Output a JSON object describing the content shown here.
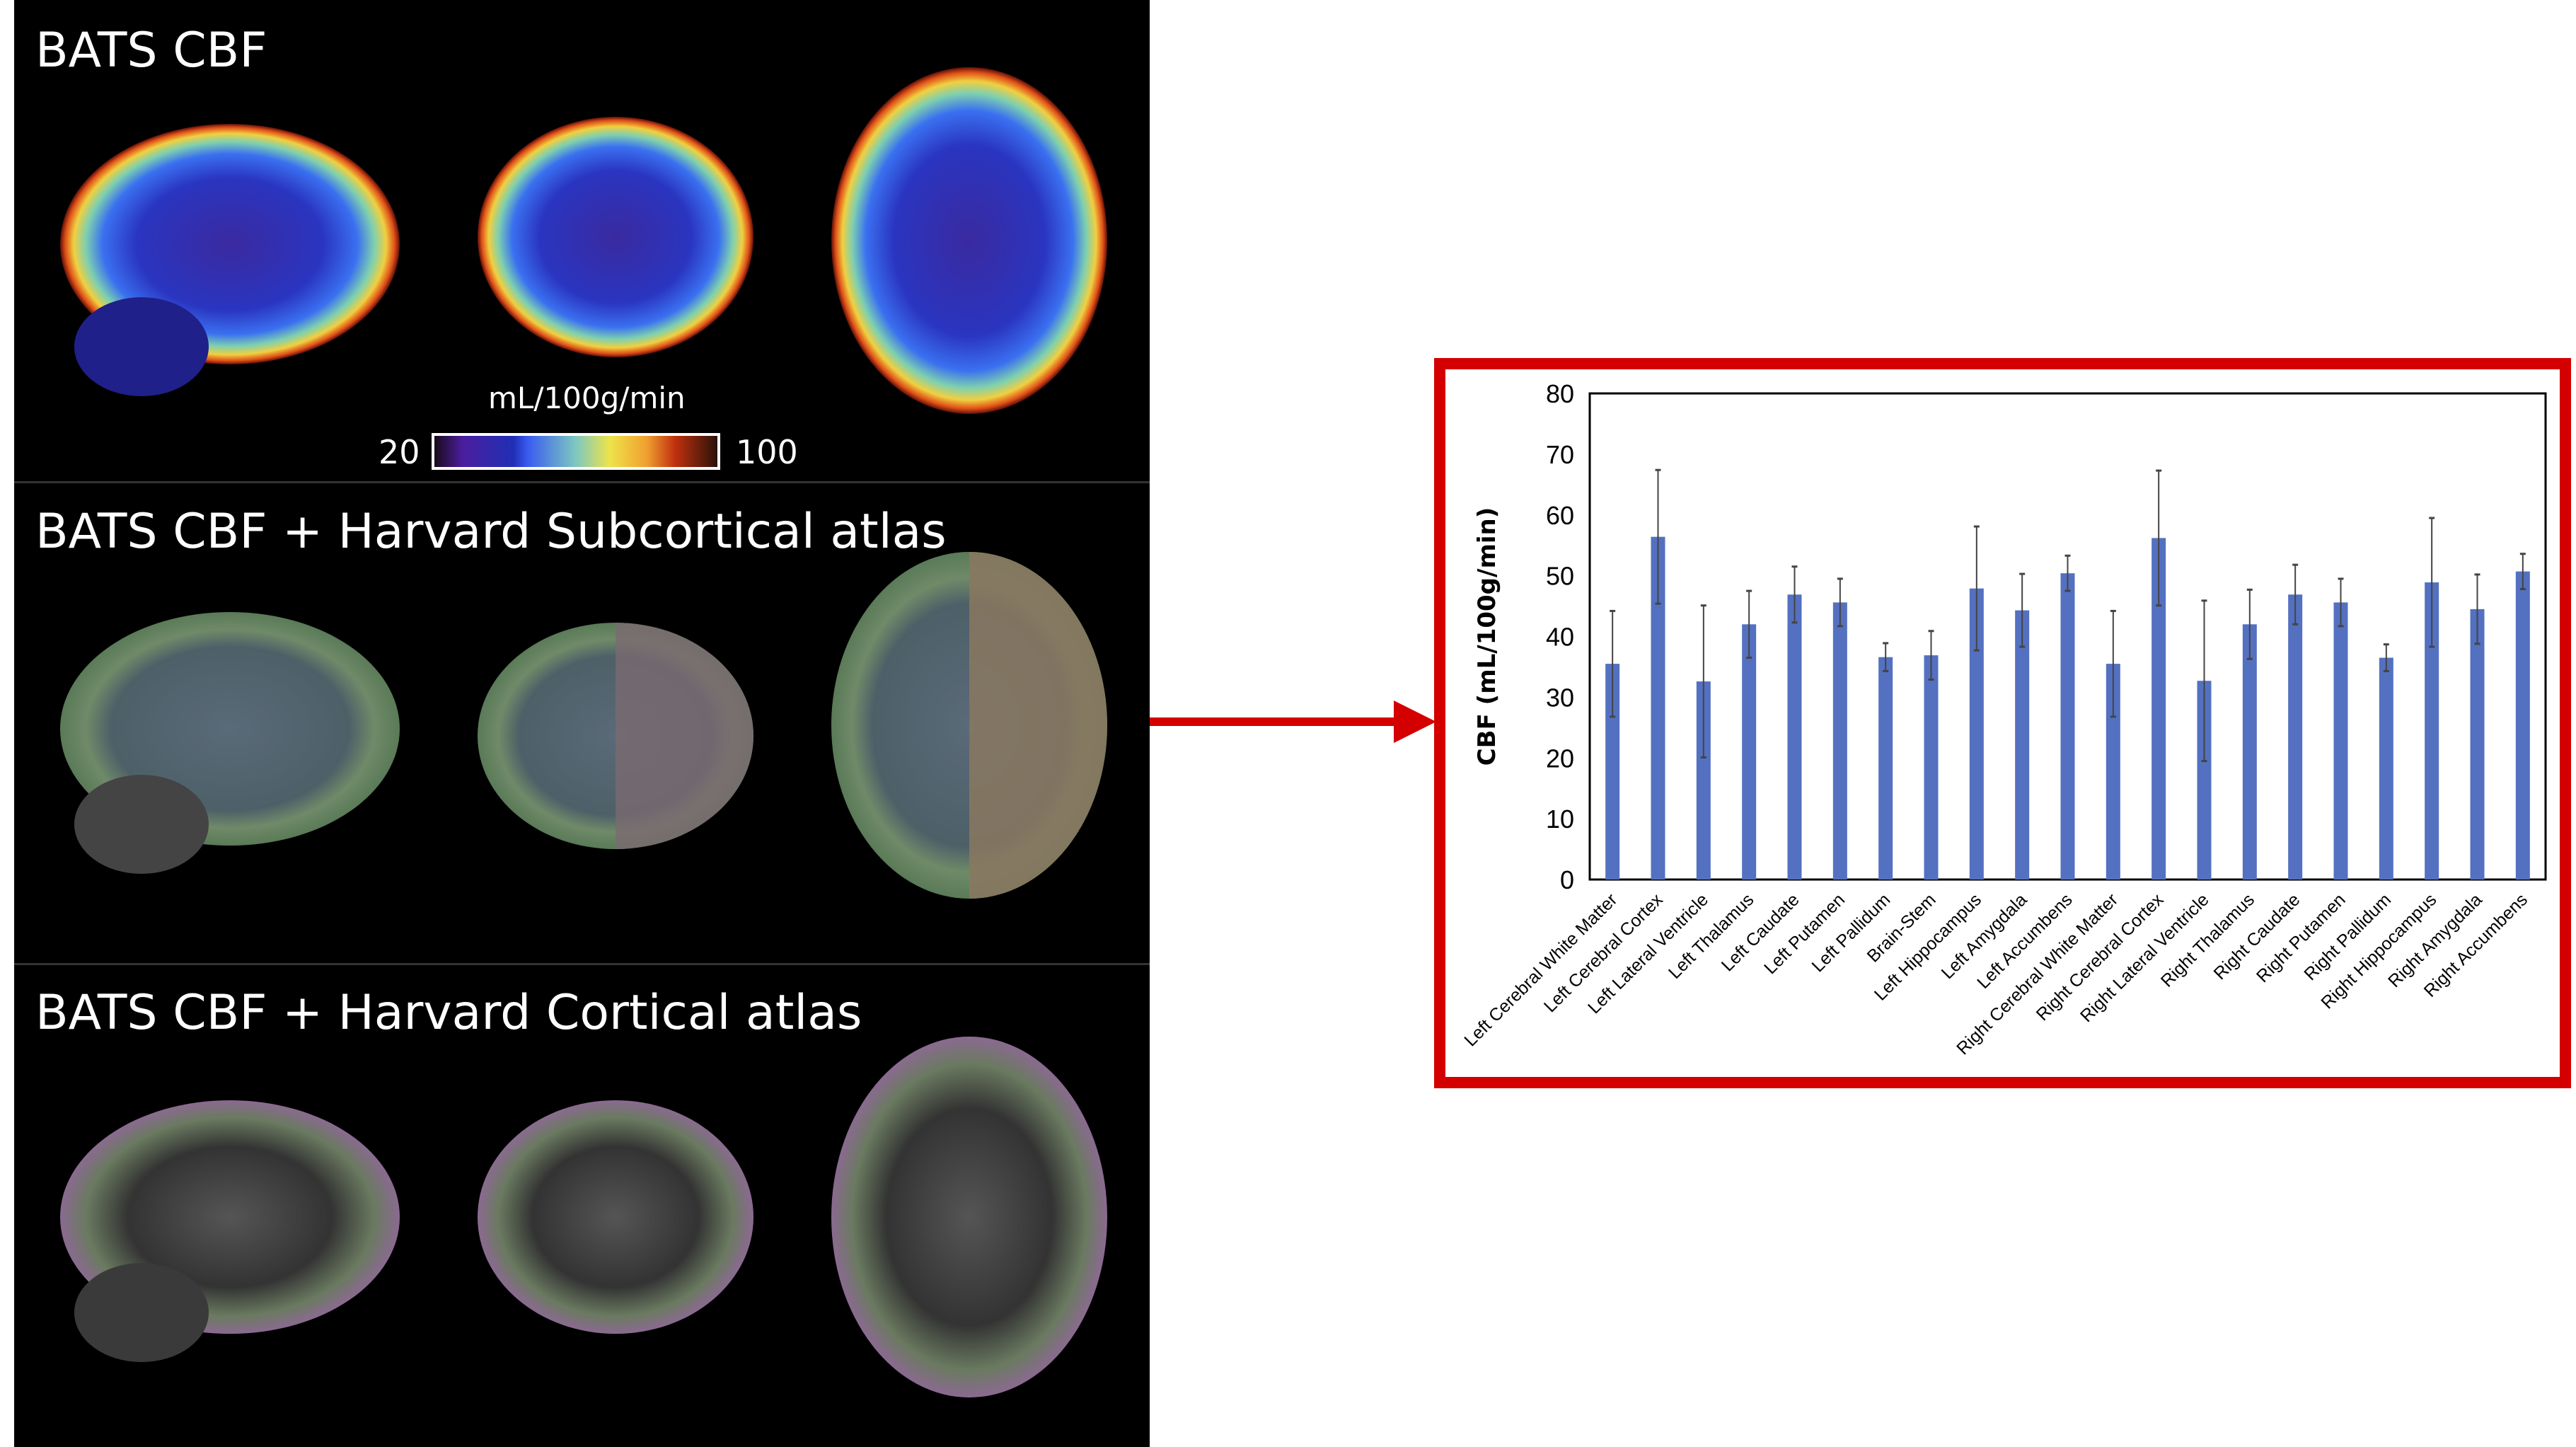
{
  "panels": [
    {
      "title": "BATS CBF"
    },
    {
      "title": "BATS CBF + Harvard Subcortical atlas"
    },
    {
      "title": "BATS CBF + Harvard Cortical atlas"
    }
  ],
  "colorbar": {
    "unit": "mL/100g/min",
    "min": "20",
    "max": "100"
  },
  "colors": {
    "bar": "#5470c0",
    "highlight_box": "#d40000",
    "arrow": "#d40000"
  },
  "chart_data": {
    "type": "bar",
    "ylabel": "CBF (mL/100g/min)",
    "ylim": [
      0,
      80
    ],
    "yticks": [
      "0",
      "10",
      "20",
      "30",
      "40",
      "50",
      "60",
      "70",
      "80"
    ],
    "categories": [
      "Left Cerebral White Matter",
      "Left Cerebral Cortex",
      "Left Lateral Ventricle",
      "Left Thalamus",
      "Left Caudate",
      "Left Putamen",
      "Left Pallidum",
      "Brain-Stem",
      "Left Hippocampus",
      "Left Amygdala",
      "Left Accumbens",
      "Right Cerebral White Matter",
      "Right Cerebral Cortex",
      "Right Lateral Ventricle",
      "Right Thalamus",
      "Right Caudate",
      "Right Putamen",
      "Right Pallidum",
      "Right Hippocampus",
      "Right Amygdala",
      "Right Accumbens"
    ],
    "values": [
      35.5,
      56.4,
      32.6,
      42.0,
      46.9,
      45.6,
      36.6,
      36.9,
      47.9,
      44.3,
      50.4,
      35.5,
      56.2,
      32.7,
      42.0,
      46.9,
      45.6,
      36.5,
      48.9,
      44.5,
      50.7
    ],
    "errors": [
      8.7,
      11.0,
      12.5,
      5.5,
      4.6,
      3.9,
      2.3,
      4.0,
      10.2,
      6.0,
      2.9,
      8.7,
      11.1,
      13.2,
      5.7,
      4.9,
      3.9,
      2.2,
      10.6,
      5.7,
      2.9
    ]
  }
}
